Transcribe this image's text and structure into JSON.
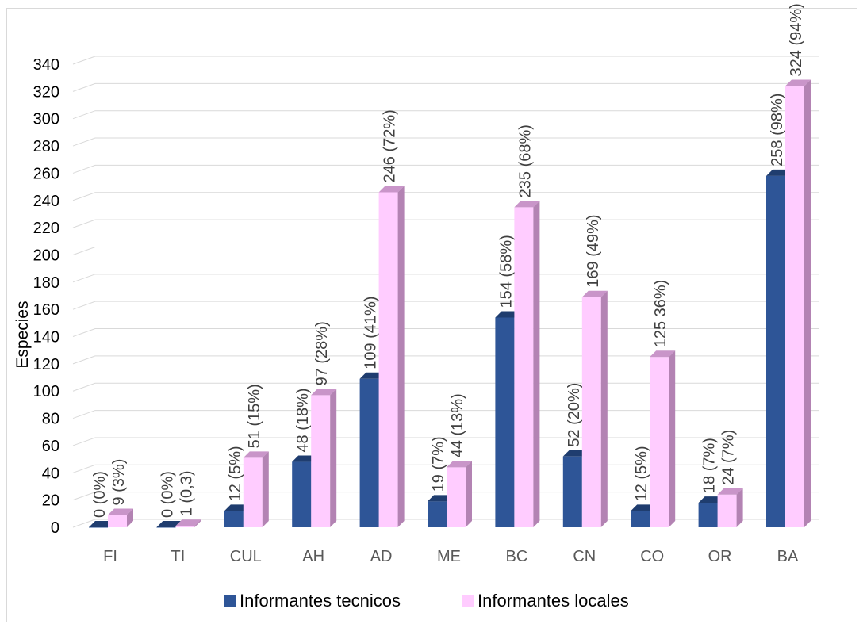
{
  "chart_data": {
    "type": "bar",
    "style": "3d-clustered-column",
    "categories": [
      "FI",
      "TI",
      "CUL",
      "AH",
      "AD",
      "ME",
      "BC",
      "CN",
      "CO",
      "OR",
      "BA"
    ],
    "series": [
      {
        "name": "Informantes tecnicos",
        "color": "#2e5597",
        "values": [
          0,
          0,
          12,
          48,
          109,
          19,
          154,
          52,
          12,
          18,
          258
        ],
        "labels": [
          "0 (0%)",
          "0 (0%)",
          "12 (5%)",
          "48 (18%)",
          "109 (41%)",
          "19 (7%)",
          "154 (58%)",
          "52 (20%)",
          "12 (5%)",
          "18 (7%)",
          "258 (98%)"
        ]
      },
      {
        "name": "Informantes locales",
        "color": "#ffccff",
        "values": [
          9,
          1,
          51,
          97,
          246,
          44,
          235,
          169,
          125,
          24,
          324
        ],
        "labels": [
          "9 (3%)",
          "1 (0,3)",
          "51 (15%)",
          "97 (28%)",
          "246 (72%)",
          "44 (13%)",
          "235 (68%)",
          "169 (49%)",
          "125 36%)",
          "24 (7%)",
          "324 (94%)"
        ]
      }
    ],
    "ylabel": "Especies",
    "xlabel": "",
    "title": "",
    "ylim": [
      0,
      340
    ],
    "yticks": [
      0,
      20,
      40,
      60,
      80,
      100,
      120,
      140,
      160,
      180,
      200,
      220,
      240,
      260,
      280,
      300,
      320,
      340
    ],
    "grid": true,
    "legend_position": "bottom"
  }
}
